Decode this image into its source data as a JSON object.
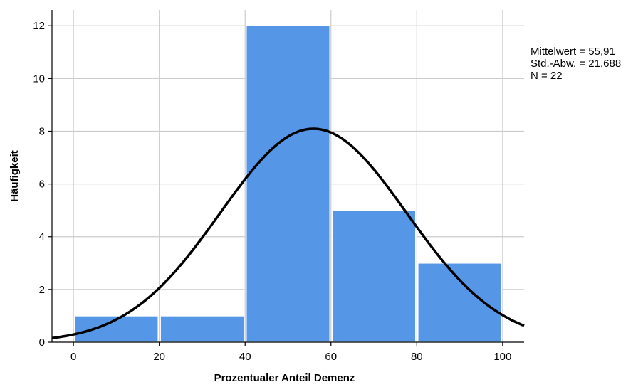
{
  "chart_data": {
    "type": "bar",
    "subtype": "histogram",
    "title": "",
    "xlabel": "Prozentualer Anteil Demenz",
    "ylabel": "Häufigkeit",
    "bins": [
      {
        "from": 0,
        "to": 20,
        "value": 1
      },
      {
        "from": 20,
        "to": 40,
        "value": 1
      },
      {
        "from": 40,
        "to": 60,
        "value": 12
      },
      {
        "from": 60,
        "to": 80,
        "value": 5
      },
      {
        "from": 80,
        "to": 100,
        "value": 3
      }
    ],
    "xlim": [
      -5,
      105
    ],
    "ylim": [
      0,
      12.6
    ],
    "x_ticks": [
      0,
      20,
      40,
      60,
      80,
      100
    ],
    "y_ticks": [
      0,
      2,
      4,
      6,
      8,
      10,
      12
    ],
    "grid": true,
    "normal_curve": {
      "mean": 55.91,
      "sd": 21.688,
      "n": 22,
      "bin_width": 20
    },
    "stats_text": [
      "Mittelwert = 55,91",
      "Std.-Abw. = 21,688",
      "N = 22"
    ],
    "colors": {
      "bar": "#5596e6",
      "bar_edge": "#ffffff",
      "curve": "#000000",
      "grid": "#cccccc",
      "axis": "#000000"
    }
  }
}
